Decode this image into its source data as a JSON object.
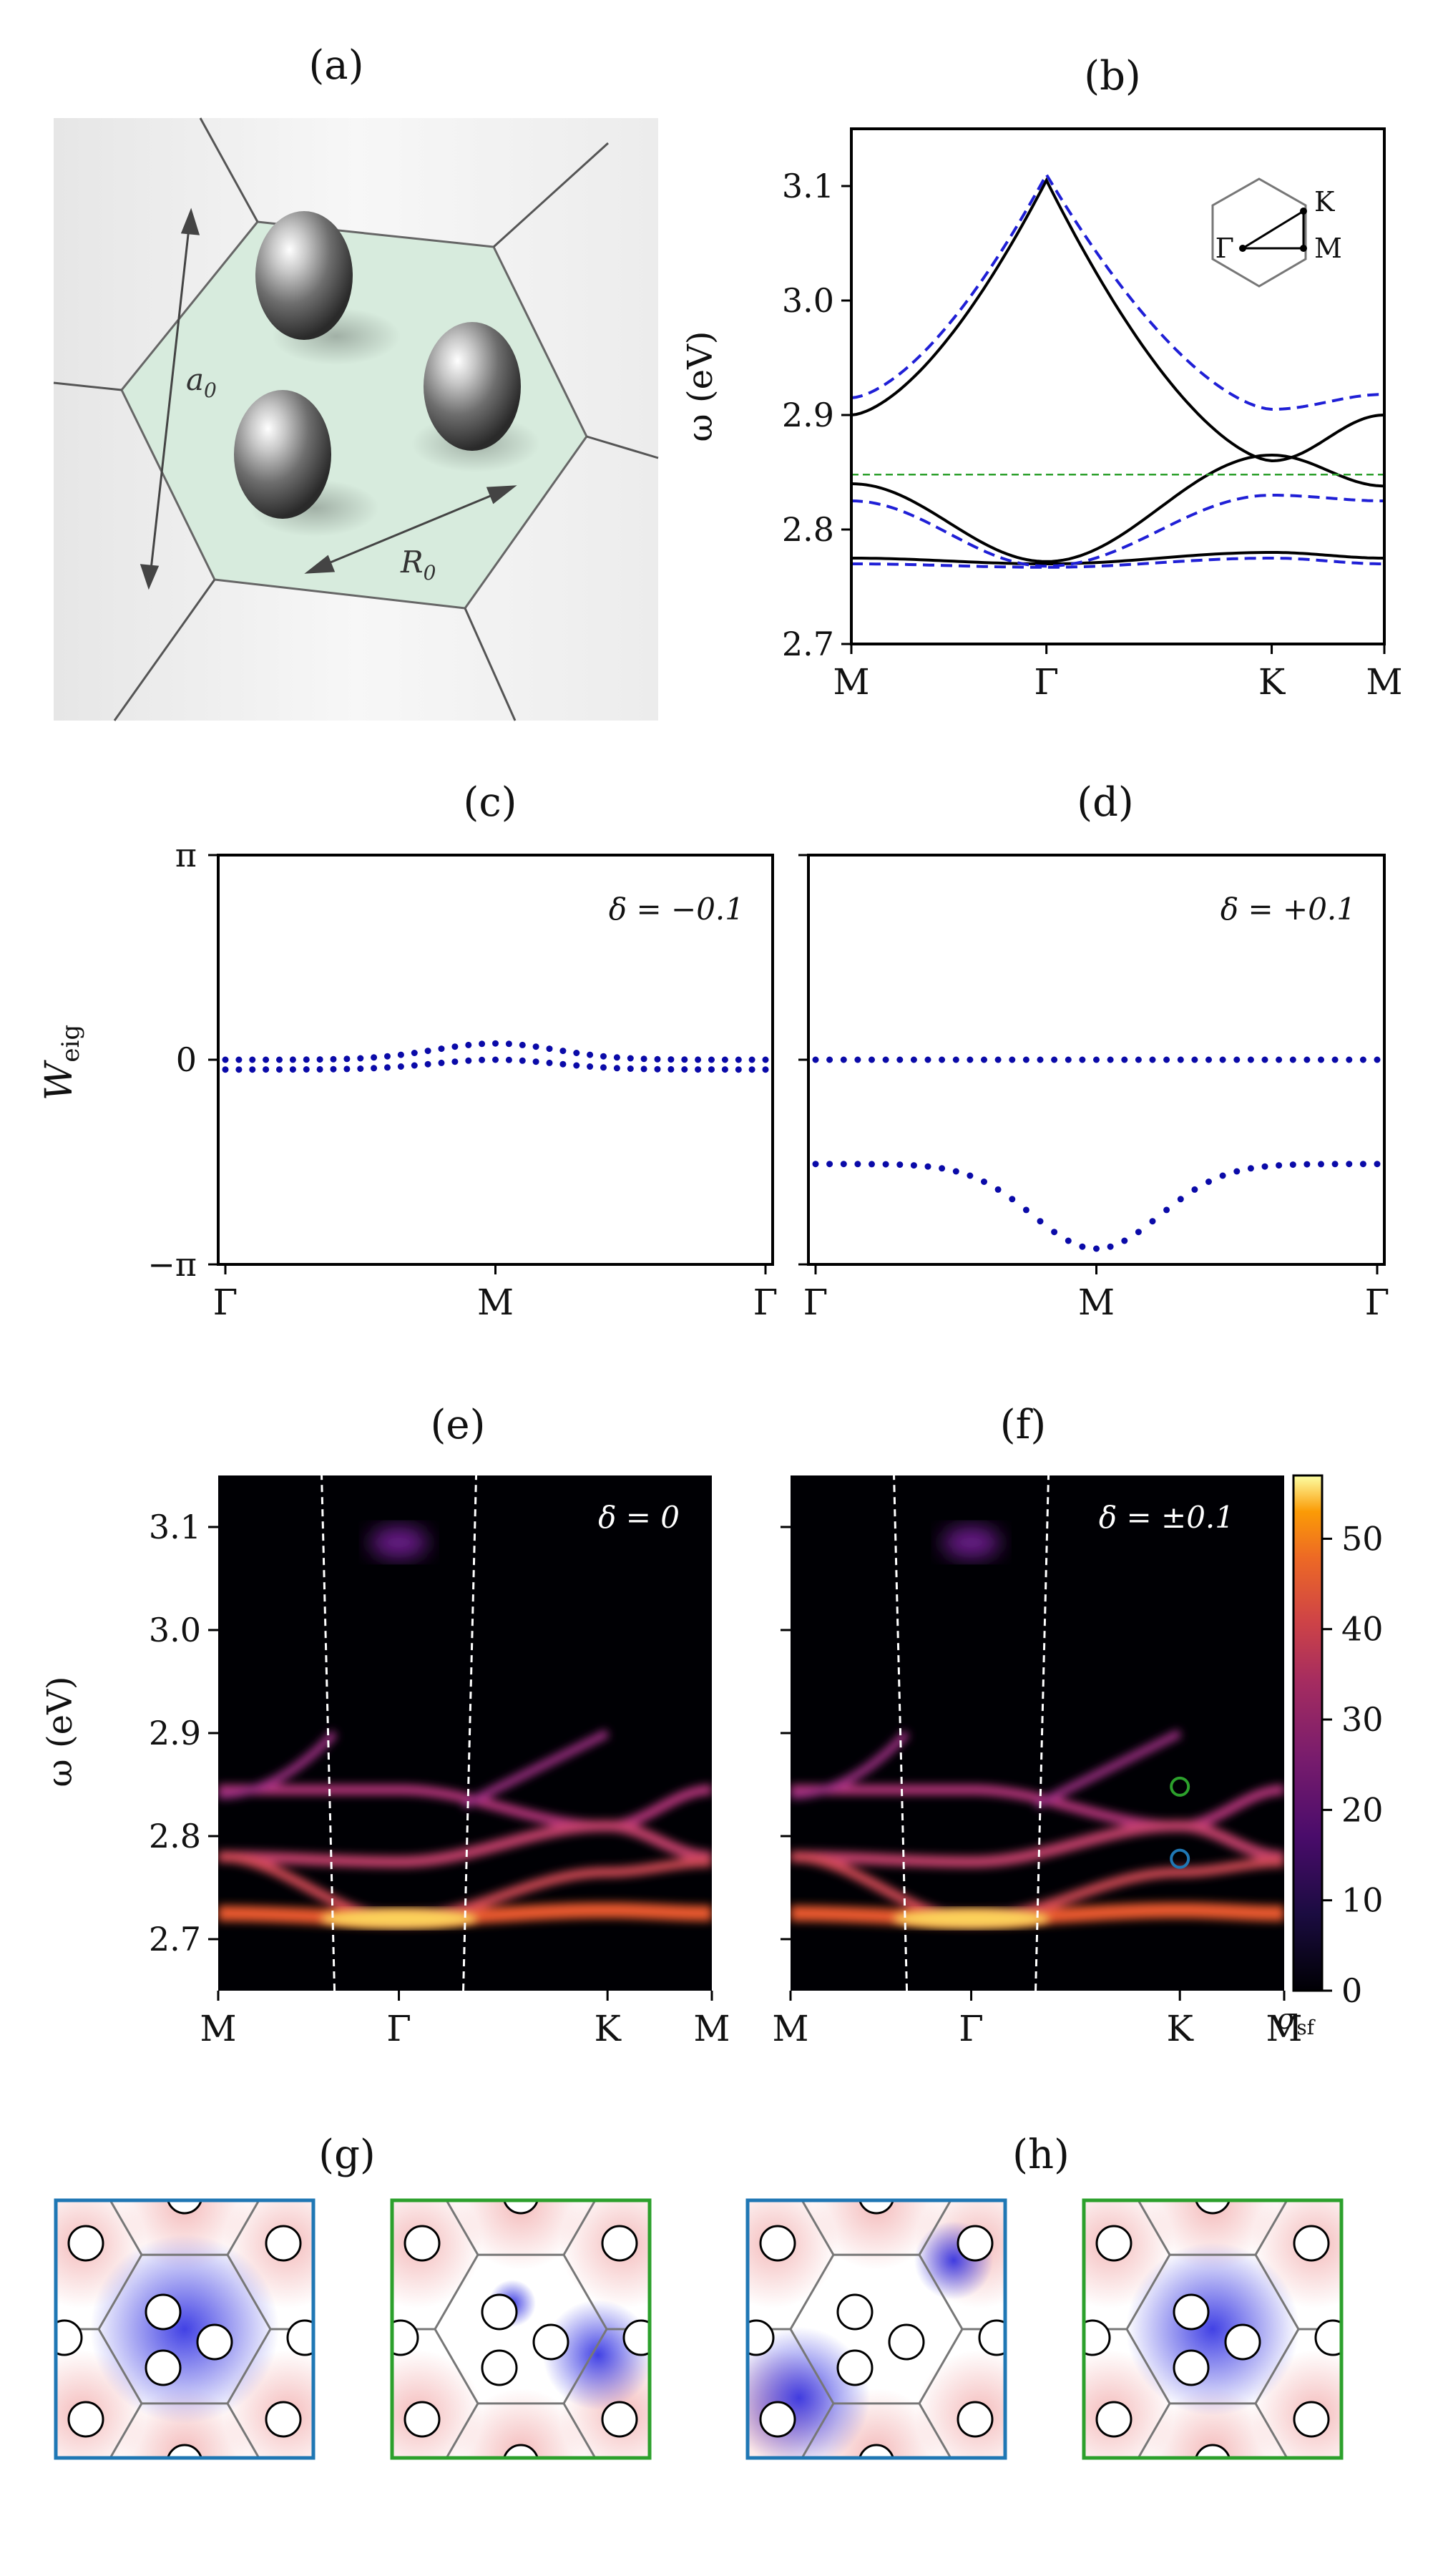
{
  "panel_labels": {
    "a": "(a)",
    "b": "(b)",
    "c": "(c)",
    "d": "(d)",
    "e": "(e)",
    "f": "(f)",
    "g": "(g)",
    "h": "(h)"
  },
  "panel_a": {
    "label_a0": "a",
    "label_a0_sub": "0",
    "label_R0": "R",
    "label_R0_sub": "0"
  },
  "panel_b": {
    "ylabel": "ω (eV)",
    "yticks": [
      "3.1",
      "3.0",
      "2.9",
      "2.8",
      "2.7"
    ],
    "xticks": [
      "M",
      "Γ",
      "K",
      "M"
    ],
    "inset_labels": {
      "gamma": "Γ",
      "k": "K",
      "m": "M"
    }
  },
  "panel_c": {
    "ylabel_main": "W",
    "ylabel_sub": "eig",
    "yticks": [
      "π",
      "0",
      "−π"
    ],
    "xticks": [
      "Γ",
      "M",
      "Γ"
    ],
    "annotation": "δ = −0.1"
  },
  "panel_d": {
    "xticks": [
      "Γ",
      "M",
      "Γ"
    ],
    "annotation": "δ = +0.1"
  },
  "panel_e": {
    "ylabel": "ω (eV)",
    "yticks": [
      "3.1",
      "3.0",
      "2.9",
      "2.8",
      "2.7"
    ],
    "xticks": [
      "M",
      "Γ",
      "K",
      "M"
    ],
    "annotation": "δ = 0"
  },
  "panel_f": {
    "xticks": [
      "M",
      "Γ",
      "K",
      "M"
    ],
    "annotation": "δ = ±0.1"
  },
  "colorbar": {
    "ticks": [
      "50",
      "40",
      "30",
      "20",
      "10",
      "0"
    ],
    "label_main": "σ",
    "label_sub": "sf"
  },
  "colors": {
    "black_band": "#000000",
    "blue_band": "#1f1fd6",
    "green_line": "#2ca02c",
    "dots": "#0a0aa8",
    "gbox_blue": "#1f77b4",
    "gbox_green": "#2ca02c",
    "hex_fill": "#d7ebdd"
  },
  "chart_data": [
    {
      "panel": "b",
      "type": "line",
      "title": "(b)",
      "ylabel": "ω (eV)",
      "ylim": [
        2.7,
        3.15
      ],
      "x": [
        "M",
        "Γ",
        "K",
        "M"
      ],
      "series": [
        {
          "name": "black band 1",
          "style": "solid",
          "values": [
            2.9,
            3.105,
            2.86,
            2.9
          ]
        },
        {
          "name": "black band 2",
          "style": "solid",
          "values": [
            2.84,
            2.772,
            2.865,
            2.838
          ]
        },
        {
          "name": "black band 3",
          "style": "solid",
          "values": [
            2.775,
            2.77,
            2.78,
            2.775
          ]
        },
        {
          "name": "blue band 1",
          "style": "dashed",
          "values": [
            2.915,
            3.11,
            2.905,
            2.918
          ]
        },
        {
          "name": "blue band 2",
          "style": "dashed",
          "values": [
            2.825,
            2.768,
            2.83,
            2.825
          ]
        },
        {
          "name": "blue band 3",
          "style": "dashed",
          "values": [
            2.77,
            2.767,
            2.775,
            2.77
          ]
        },
        {
          "name": "green reference",
          "style": "dashed",
          "values": [
            2.848,
            2.848,
            2.848,
            2.848
          ]
        }
      ]
    },
    {
      "panel": "c",
      "type": "scatter",
      "title": "(c)",
      "annotation": "δ = −0.1",
      "ylim": [
        "−π",
        "π"
      ],
      "x": [
        "Γ",
        "M",
        "Γ"
      ],
      "series": [
        {
          "name": "Wilson eigenvalue 1",
          "values_at_gamma_M_gamma": [
            0.0,
            0.25,
            0.0
          ]
        },
        {
          "name": "Wilson eigenvalue 2",
          "values_at_gamma_M_gamma": [
            -0.15,
            0.0,
            -0.15
          ]
        }
      ]
    },
    {
      "panel": "d",
      "type": "scatter",
      "title": "(d)",
      "annotation": "δ = +0.1",
      "ylim": [
        "−π",
        "π"
      ],
      "x": [
        "Γ",
        "M",
        "Γ"
      ],
      "series": [
        {
          "name": "Wilson eigenvalue 1",
          "values_at_gamma_M_gamma": [
            0.0,
            0.0,
            0.0
          ]
        },
        {
          "name": "Wilson eigenvalue 2",
          "values_at_gamma_M_gamma": [
            -1.6,
            -2.9,
            -1.6
          ]
        }
      ]
    },
    {
      "panel": "e",
      "type": "heatmap",
      "title": "(e)",
      "annotation": "δ = 0",
      "ylabel": "ω (eV)",
      "ylim": [
        2.65,
        3.15
      ],
      "x": [
        "M",
        "Γ",
        "K",
        "M"
      ]
    },
    {
      "panel": "f",
      "type": "heatmap",
      "title": "(f)",
      "annotation": "δ = ±0.1",
      "ylim": [
        2.65,
        3.15
      ],
      "x": [
        "M",
        "Γ",
        "K",
        "M"
      ],
      "markers": [
        {
          "at": "K",
          "omega": 2.848,
          "color": "green"
        },
        {
          "at": "K",
          "omega": 2.778,
          "color": "blue"
        }
      ],
      "colorbar": {
        "label": "σ_sf",
        "range": [
          0,
          57
        ],
        "ticks": [
          0,
          10,
          20,
          30,
          40,
          50
        ]
      }
    }
  ]
}
